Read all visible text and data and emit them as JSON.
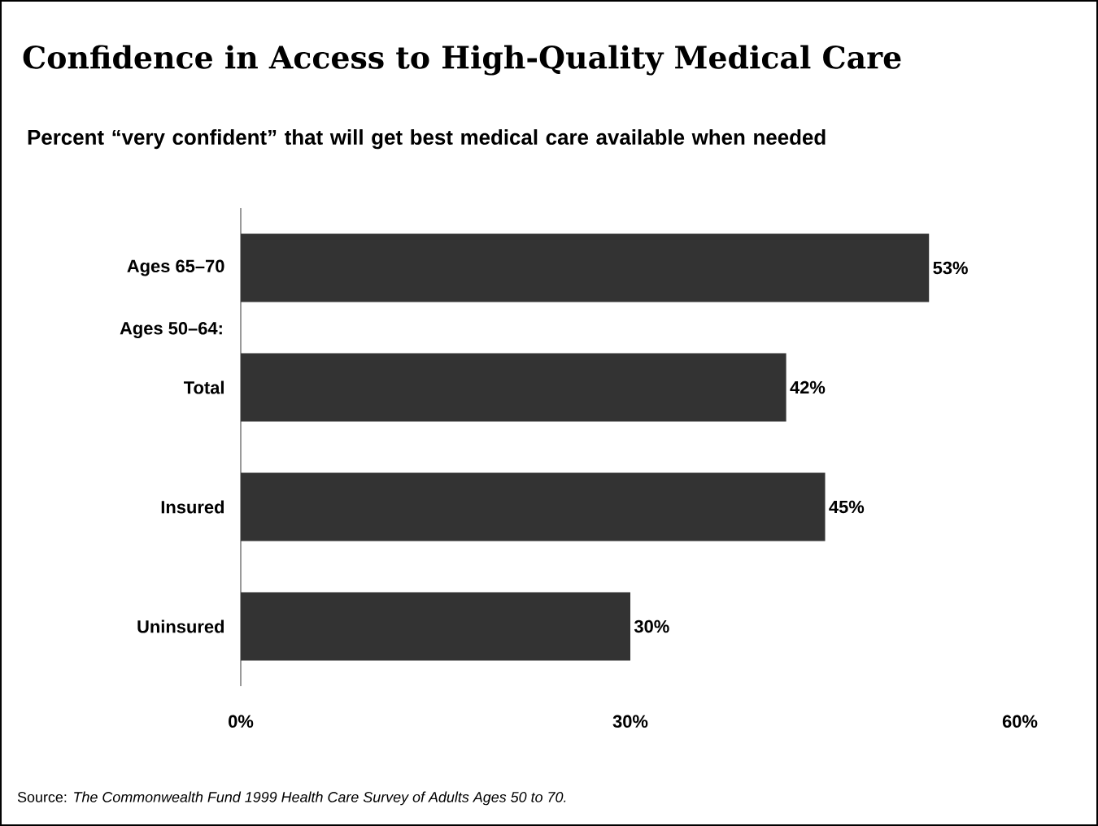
{
  "chart_data": {
    "type": "bar",
    "orientation": "horizontal",
    "title": "Confidence in Access to High-Quality Medical Care",
    "subtitle": "Percent “very confident” that will get best medical care available when needed",
    "categories": [
      "Ages 65–70",
      "Total",
      "Insured",
      "Uninsured"
    ],
    "values": [
      53,
      42,
      45,
      30
    ],
    "value_labels": [
      "53%",
      "42%",
      "45%",
      "30%"
    ],
    "color": "#333333",
    "xlim": [
      0,
      60
    ],
    "xticks": [
      {
        "value": 0,
        "label": "0%"
      },
      {
        "value": 30,
        "label": "30%"
      },
      {
        "value": 60,
        "label": "60%"
      }
    ],
    "annotations": [
      "Ages 50–64:",
      "Source: *The Commonwealth Fund 1999 Health Care Survey of Adults Ages 50 to 70.*"
    ]
  }
}
